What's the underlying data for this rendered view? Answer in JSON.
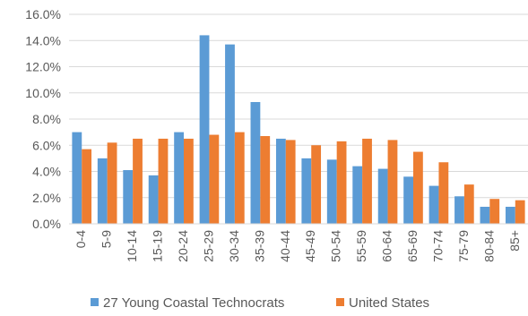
{
  "chart_data": {
    "type": "bar",
    "categories": [
      "0-4",
      "5-9",
      "10-14",
      "15-19",
      "20-24",
      "25-29",
      "30-34",
      "35-39",
      "40-44",
      "45-49",
      "50-54",
      "55-59",
      "60-64",
      "65-69",
      "70-74",
      "75-79",
      "80-84",
      "85+"
    ],
    "series": [
      {
        "name": "27 Young Coastal Technocrats",
        "color": "#5B9BD5",
        "values": [
          7.0,
          5.0,
          4.1,
          3.7,
          7.0,
          14.4,
          13.7,
          9.3,
          6.5,
          5.0,
          4.9,
          4.4,
          4.2,
          3.6,
          2.9,
          2.1,
          1.3,
          1.3
        ]
      },
      {
        "name": "United States",
        "color": "#ED7D31",
        "values": [
          5.7,
          6.2,
          6.5,
          6.5,
          6.5,
          6.8,
          7.0,
          6.7,
          6.4,
          6.0,
          6.3,
          6.5,
          6.4,
          5.5,
          4.7,
          3.0,
          1.9,
          1.8
        ]
      }
    ],
    "y_ticks": [
      "0.0%",
      "2.0%",
      "4.0%",
      "6.0%",
      "8.0%",
      "10.0%",
      "12.0%",
      "14.0%",
      "16.0%"
    ],
    "ylim": [
      0,
      16
    ],
    "grid": true,
    "legend_position": "bottom",
    "title": "",
    "xlabel": "",
    "ylabel": ""
  }
}
